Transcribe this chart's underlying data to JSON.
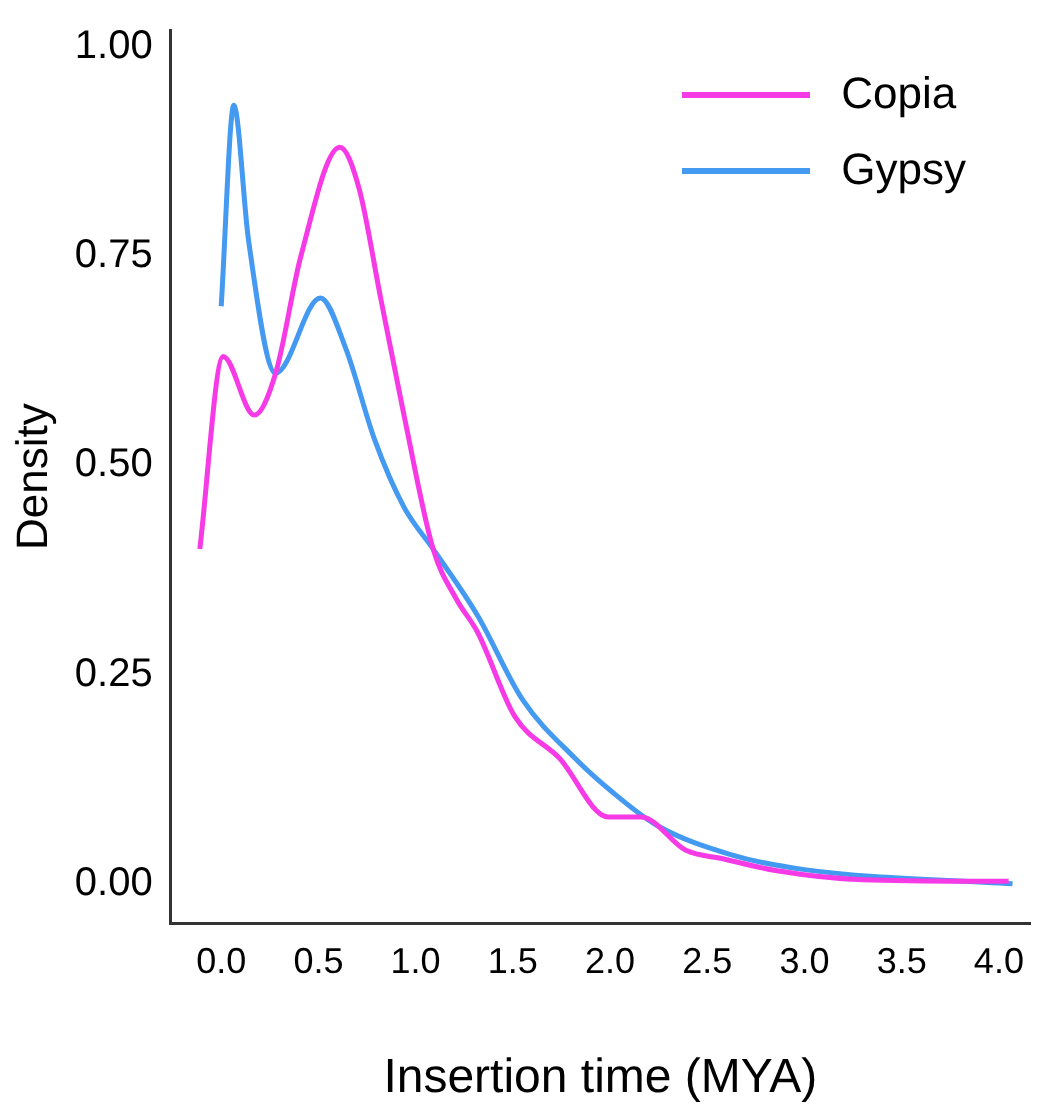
{
  "chart_data": {
    "type": "line",
    "xlabel": "Insertion time (MYA)",
    "ylabel": "Density",
    "xlim": [
      -0.26,
      4.16
    ],
    "ylim": [
      -0.047,
      1.02
    ],
    "xticks": [
      {
        "value": 0,
        "label": "0.0"
      },
      {
        "value": 0.5,
        "label": "0.5"
      },
      {
        "value": 1,
        "label": "1.0"
      },
      {
        "value": 1.5,
        "label": "1.5"
      },
      {
        "value": 2,
        "label": "2.0"
      },
      {
        "value": 2.5,
        "label": "2.5"
      },
      {
        "value": 3,
        "label": "3.0"
      },
      {
        "value": 3.5,
        "label": "3.5"
      },
      {
        "value": 4,
        "label": "4.0"
      }
    ],
    "yticks": [
      {
        "value": 0,
        "label": "0.00"
      },
      {
        "value": 0.25,
        "label": "0.25"
      },
      {
        "value": 0.5,
        "label": "0.50"
      },
      {
        "value": 0.75,
        "label": "0.75"
      },
      {
        "value": 1,
        "label": "1.00"
      }
    ],
    "grid": false,
    "legend": "top right",
    "marker": "none",
    "line_style": "solid",
    "series": [
      {
        "name": "Copia",
        "color": "#f53ae6",
        "x": [
          -0.11,
          0.01,
          0.17,
          0.28,
          0.41,
          0.61,
          0.71,
          0.82,
          0.94,
          1.09,
          1.21,
          1.32,
          1.51,
          1.74,
          1.99,
          2.16,
          2.39,
          2.58,
          2.85,
          3.3,
          4.05
        ],
        "values": [
          0.4,
          0.63,
          0.56,
          0.61,
          0.75,
          0.88,
          0.83,
          0.7,
          0.56,
          0.4,
          0.34,
          0.3,
          0.2,
          0.15,
          0.08,
          0.08,
          0.04,
          0.03,
          0.016,
          0.005,
          0.003
        ]
      },
      {
        "name": "Gypsy",
        "color": "#4499f0",
        "x": [
          0,
          0.065,
          0.14,
          0.28,
          0.51,
          0.64,
          0.79,
          0.94,
          1.09,
          1.32,
          1.55,
          1.82,
          2.01,
          2.24,
          2.62,
          3.0,
          4.07
        ],
        "values": [
          0.69,
          0.93,
          0.77,
          0.61,
          0.7,
          0.64,
          0.53,
          0.45,
          0.4,
          0.32,
          0.22,
          0.15,
          0.11,
          0.07,
          0.035,
          0.017,
          0
        ]
      }
    ]
  }
}
